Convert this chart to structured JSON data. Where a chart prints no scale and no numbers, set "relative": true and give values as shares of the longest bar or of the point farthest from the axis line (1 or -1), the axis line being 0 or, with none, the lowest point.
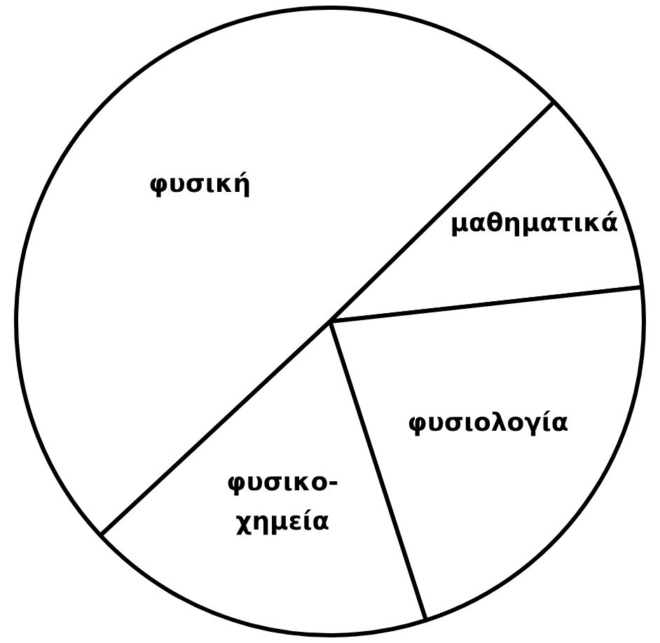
{
  "chart_data": {
    "type": "pie",
    "relative": true,
    "categories": [
      "φυσική",
      "μαθηματικά",
      "φυσιολογία",
      "φυσικο-χημεία"
    ],
    "values": [
      49.6,
      10.6,
      21.8,
      18.0
    ],
    "colors": [
      "#ffffff",
      "#ffffff",
      "#ffffff",
      "#ffffff"
    ],
    "legend": false
  }
}
